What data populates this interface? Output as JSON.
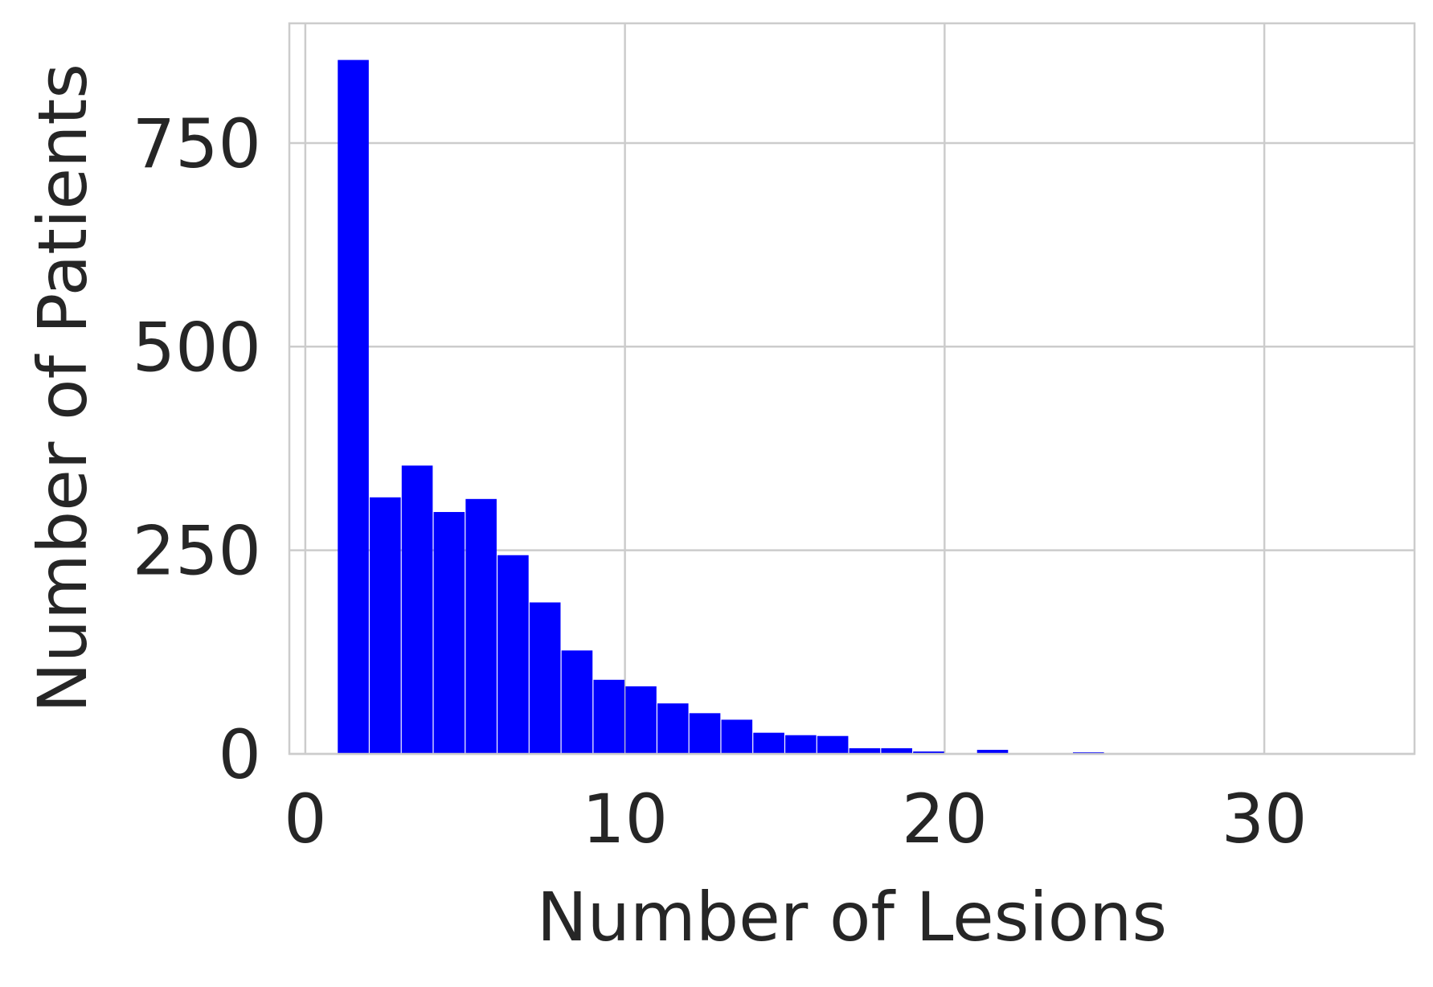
{
  "chart_data": {
    "type": "bar",
    "title": "",
    "xlabel": "Number of Lesions",
    "ylabel": "Number of Patients",
    "xlim": [
      -0.5,
      34.7
    ],
    "ylim": [
      0,
      897
    ],
    "xticks": [
      0,
      10,
      20,
      30
    ],
    "yticks": [
      0,
      250,
      500,
      750
    ],
    "xtick_labels": [
      "0",
      "10",
      "20",
      "30"
    ],
    "ytick_labels": [
      "0",
      "250",
      "500",
      "750"
    ],
    "grid": true,
    "bar_color": "#0000ff",
    "bin_width": 0.97,
    "series": [
      {
        "x": [
          1.5,
          2.5,
          3.5,
          4.5,
          5.5,
          6.5,
          7.5,
          8.5,
          9.5,
          10.5,
          11.5,
          12.5,
          13.5,
          14.5,
          15.5,
          16.5,
          17.5,
          18.5,
          19.5,
          20.5,
          21.5,
          22.5,
          23.5,
          24.5
        ],
        "values": [
          852,
          315,
          354,
          297,
          313,
          244,
          186,
          127,
          91,
          83,
          62,
          50,
          42,
          26,
          23,
          22,
          7,
          7,
          3,
          0,
          5,
          0,
          0,
          2
        ]
      }
    ]
  }
}
